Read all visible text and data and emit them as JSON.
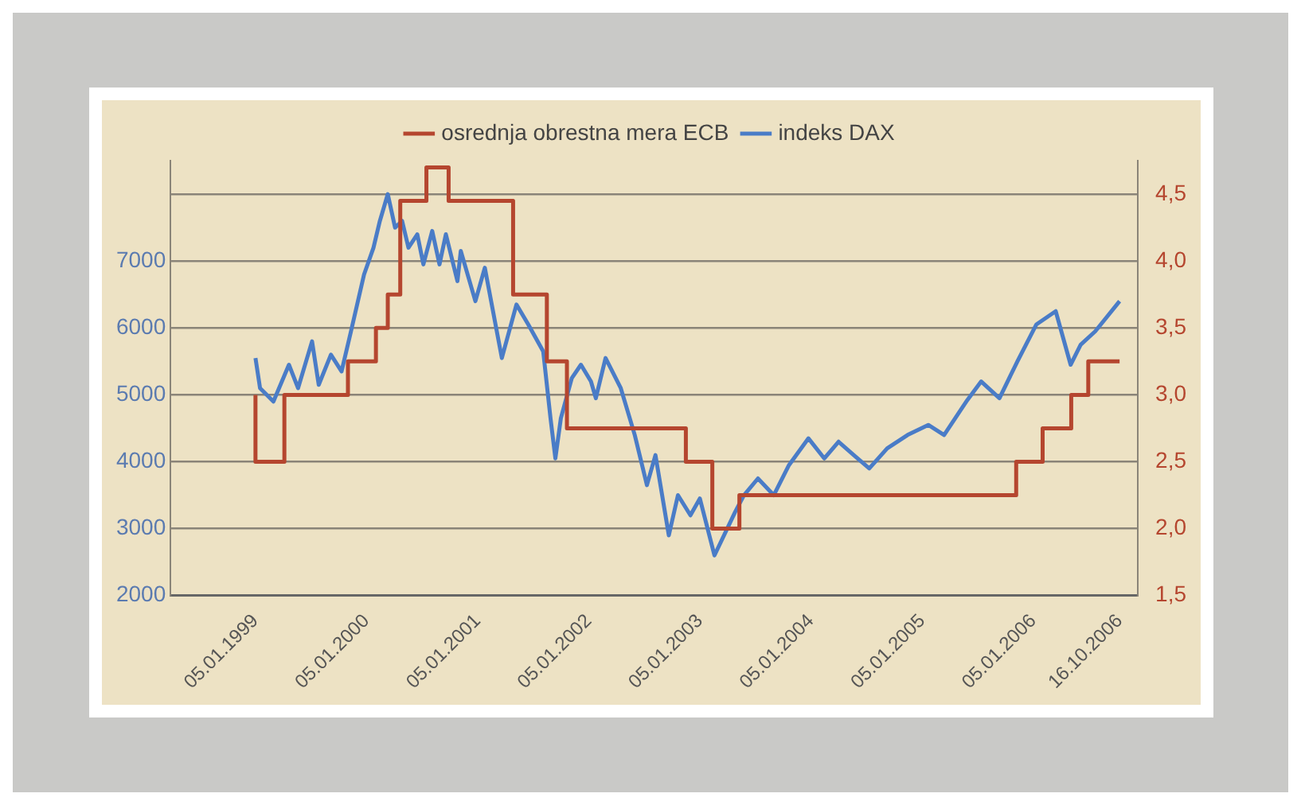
{
  "chart_data": {
    "type": "line",
    "xlim": [
      "1998-04-01",
      "2006-12-15"
    ],
    "xticks": [
      {
        "value": "1999-01-05",
        "label": "05.01.1999"
      },
      {
        "value": "2000-01-05",
        "label": "05.01.2000"
      },
      {
        "value": "2001-01-05",
        "label": "05.01.2001"
      },
      {
        "value": "2002-01-05",
        "label": "05.01.2002"
      },
      {
        "value": "2003-01-05",
        "label": "05.01.2003"
      },
      {
        "value": "2004-01-05",
        "label": "05.01.2004"
      },
      {
        "value": "2005-01-05",
        "label": "05.01.2005"
      },
      {
        "value": "2006-01-05",
        "label": "05.01.2006"
      },
      {
        "value": "2006-10-16",
        "label": "16.10.2006"
      }
    ],
    "ylim": [
      2000,
      8500
    ],
    "yticks": [
      2000,
      3000,
      4000,
      5000,
      6000,
      7000,
      {
        "value": 8000,
        "label": null
      }
    ],
    "y2lim": [
      1.5,
      4.75
    ],
    "y2ticks": [
      {
        "value": 1.5,
        "label": "1,5"
      },
      {
        "value": 2,
        "label": "2,0"
      },
      {
        "value": 2.5,
        "label": "2,5"
      },
      {
        "value": 3,
        "label": "3,0"
      },
      {
        "value": 3.5,
        "label": "3,5"
      },
      {
        "value": 4,
        "label": "4,0"
      },
      {
        "value": 4.5,
        "label": "4,5"
      }
    ],
    "grid": "y",
    "legend": "top",
    "marker": "none",
    "series": [
      {
        "name": "osrednja obrestna mera ECB",
        "type": "step",
        "axis": "y2",
        "color": "#b5462f",
        "x": [
          "1999-01-05",
          "1999-04-10",
          "1999-11-05",
          "2000-02-05",
          "2000-03-15",
          "2000-04-25",
          "2000-07-20",
          "2000-10-01",
          "2001-05-01",
          "2001-08-20",
          "2001-10-25",
          "2002-11-20",
          "2003-02-15",
          "2003-05-15",
          "2005-11-10",
          "2006-02-05",
          "2006-05-10",
          "2006-07-05",
          "2006-09-10",
          "2006-10-16"
        ],
        "values": [
          3.0,
          2.5,
          3.0,
          3.25,
          3.5,
          3.75,
          4.45,
          4.7,
          4.45,
          3.75,
          3.25,
          2.75,
          2.5,
          2.0,
          2.25,
          2.5,
          2.75,
          3.0,
          3.25,
          3.25
        ]
      },
      {
        "name": "indeks DAX",
        "color": "#4a7cc7",
        "x": [
          "1999-01-05",
          "1999-01-20",
          "1999-03-05",
          "1999-04-25",
          "1999-05-25",
          "1999-07-10",
          "1999-08-01",
          "1999-09-10",
          "1999-10-15",
          "1999-11-15",
          "1999-12-28",
          "2000-01-28",
          "2000-02-18",
          "2000-03-15",
          "2000-04-08",
          "2000-05-01",
          "2000-05-22",
          "2000-06-20",
          "2000-07-10",
          "2000-08-08",
          "2000-09-01",
          "2000-09-22",
          "2000-10-30",
          "2000-11-10",
          "2000-12-28",
          "2001-01-28",
          "2001-03-25",
          "2001-05-12",
          "2001-06-20",
          "2001-08-08",
          "2001-09-01",
          "2001-09-17",
          "2001-10-05",
          "2001-11-10",
          "2001-12-10",
          "2002-01-12",
          "2002-01-28",
          "2002-03-01",
          "2002-04-20",
          "2002-06-05",
          "2002-07-15",
          "2002-08-12",
          "2002-09-25",
          "2002-10-25",
          "2002-12-05",
          "2003-01-05",
          "2003-02-22",
          "2003-05-01",
          "2003-05-30",
          "2003-07-15",
          "2003-09-05",
          "2003-10-25",
          "2003-12-28",
          "2004-02-18",
          "2004-04-05",
          "2004-05-25",
          "2004-07-15",
          "2004-09-12",
          "2004-11-18",
          "2005-01-25",
          "2005-03-18",
          "2005-05-30",
          "2005-07-18",
          "2005-09-16",
          "2005-11-14",
          "2006-01-15",
          "2006-03-20",
          "2006-05-08",
          "2006-06-10",
          "2006-07-28",
          "2006-10-16"
        ],
        "values": [
          5550,
          5100,
          4900,
          5450,
          5100,
          5800,
          5150,
          5600,
          5350,
          5950,
          6800,
          7200,
          7600,
          8000,
          7500,
          7600,
          7200,
          7400,
          6950,
          7450,
          6950,
          7400,
          6700,
          7150,
          6400,
          6900,
          5550,
          6350,
          6050,
          5650,
          4650,
          4050,
          4650,
          5250,
          5450,
          5200,
          4950,
          5550,
          5100,
          4400,
          3650,
          4100,
          2900,
          3500,
          3200,
          3450,
          2600,
          3250,
          3500,
          3750,
          3500,
          3950,
          4350,
          4050,
          4300,
          4100,
          3900,
          4200,
          4400,
          4550,
          4400,
          4900,
          5200,
          4950,
          5500,
          6050,
          6250,
          5450,
          5750,
          5950,
          6400
        ]
      }
    ]
  }
}
